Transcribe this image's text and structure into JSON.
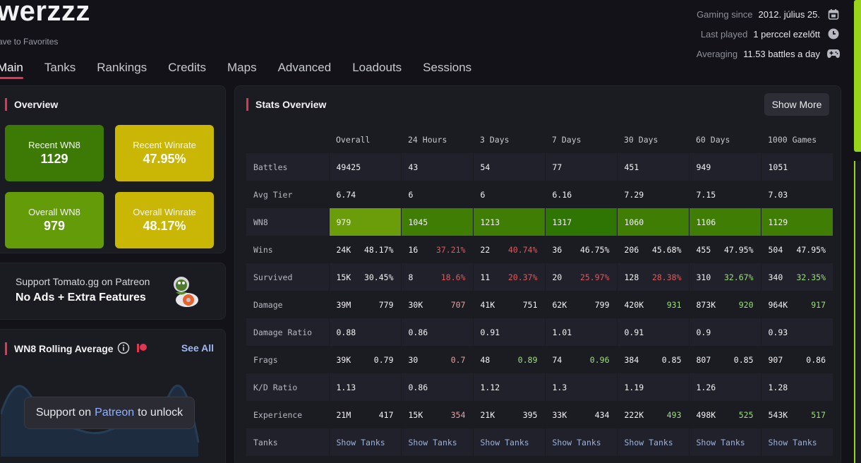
{
  "header": {
    "player_name": "werzzz",
    "favorites": "ave to Favorites",
    "meta": [
      {
        "label": "Gaming since",
        "value": "2012. július 25.",
        "icon": "calendar-icon"
      },
      {
        "label": "Last played",
        "value": "1 perccel ezelőtt",
        "icon": "clock-icon"
      },
      {
        "label": "Averaging",
        "value": "11.53 battles a day",
        "icon": "gamepad-icon"
      }
    ]
  },
  "tabs": [
    "Main",
    "Tanks",
    "Rankings",
    "Credits",
    "Maps",
    "Advanced",
    "Loadouts",
    "Sessions"
  ],
  "overview": {
    "title": "Overview",
    "cards": [
      {
        "label": "Recent WN8",
        "value": "1129"
      },
      {
        "label": "Recent Winrate",
        "value": "47.95%"
      },
      {
        "label": "Overall WN8",
        "value": "979"
      },
      {
        "label": "Overall Winrate",
        "value": "48.17%"
      }
    ]
  },
  "patreon": {
    "line1": "Support Tomato.gg on Patreon",
    "line2": "No Ads + Extra Features"
  },
  "rolling": {
    "title": "WN8 Rolling Average",
    "see_all": "See All",
    "unlock_pre": "Support on",
    "unlock_link": "Patreon",
    "unlock_post": "to unlock"
  },
  "stats": {
    "title": "Stats Overview",
    "show_more": "Show More",
    "columns": [
      "Overall",
      "24 Hours",
      "3 Days",
      "7 Days",
      "30 Days",
      "60 Days",
      "1000 Games"
    ],
    "rows": {
      "battles": {
        "label": "Battles",
        "values": [
          "49425",
          "43",
          "54",
          "77",
          "451",
          "949",
          "1051"
        ]
      },
      "avg_tier": {
        "label": "Avg Tier",
        "values": [
          "6.74",
          "6",
          "6",
          "6.16",
          "7.29",
          "7.15",
          "7.03"
        ]
      },
      "wn8": {
        "label": "WN8",
        "values": [
          "979",
          "1045",
          "1213",
          "1317",
          "1060",
          "1106",
          "1129"
        ]
      },
      "wins": {
        "label": "Wins",
        "a": [
          "24K",
          "16",
          "22",
          "36",
          "206",
          "455",
          "504"
        ],
        "b": [
          "48.17%",
          "37.21%",
          "40.74%",
          "46.75%",
          "45.68%",
          "47.95%",
          "47.95%"
        ]
      },
      "survived": {
        "label": "Survived",
        "a": [
          "15K",
          "8",
          "11",
          "20",
          "128",
          "310",
          "340"
        ],
        "b": [
          "30.45%",
          "18.6%",
          "20.37%",
          "25.97%",
          "28.38%",
          "32.67%",
          "32.35%"
        ]
      },
      "damage": {
        "label": "Damage",
        "a": [
          "39M",
          "30K",
          "41K",
          "62K",
          "420K",
          "873K",
          "964K"
        ],
        "b": [
          "779",
          "707",
          "751",
          "799",
          "931",
          "920",
          "917"
        ]
      },
      "damage_ratio": {
        "label": "Damage Ratio",
        "values": [
          "0.88",
          "0.86",
          "0.91",
          "1.01",
          "0.91",
          "0.9",
          "0.93"
        ]
      },
      "frags": {
        "label": "Frags",
        "a": [
          "39K",
          "30",
          "48",
          "74",
          "384",
          "807",
          "907"
        ],
        "b": [
          "0.79",
          "0.7",
          "0.89",
          "0.96",
          "0.85",
          "0.85",
          "0.86"
        ]
      },
      "kd": {
        "label": "K/D Ratio",
        "values": [
          "1.13",
          "0.86",
          "1.12",
          "1.3",
          "1.19",
          "1.26",
          "1.28"
        ]
      },
      "experience": {
        "label": "Experience",
        "a": [
          "21M",
          "15K",
          "21K",
          "33K",
          "222K",
          "498K",
          "543K"
        ],
        "b": [
          "417",
          "354",
          "395",
          "434",
          "493",
          "525",
          "517"
        ]
      },
      "tanks": {
        "label": "Tanks",
        "values": [
          "Show Tanks",
          "Show Tanks",
          "Show Tanks",
          "Show Tanks",
          "Show Tanks",
          "Show Tanks",
          "Show Tanks"
        ]
      }
    }
  },
  "colors": {
    "accent": "#e0364f",
    "green": "#4c8a06",
    "yellow": "#c9b605",
    "panel": "#1b1b22"
  }
}
